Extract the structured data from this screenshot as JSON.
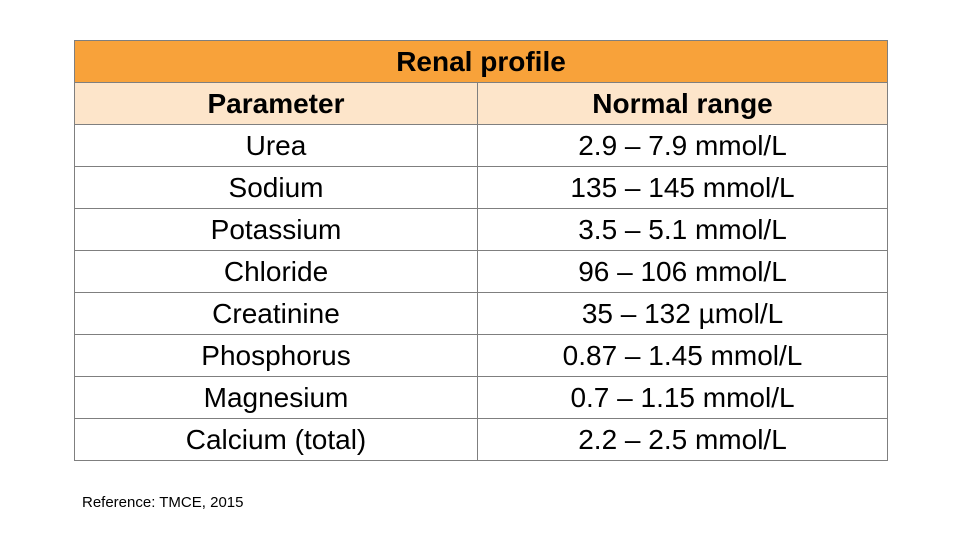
{
  "table": {
    "title": "Renal profile",
    "headers": [
      "Parameter",
      "Normal range"
    ],
    "rows": [
      {
        "parameter": "Urea",
        "range": "2.9 – 7.9 mmol/L"
      },
      {
        "parameter": "Sodium",
        "range": "135 – 145 mmol/L"
      },
      {
        "parameter": "Potassium",
        "range": "3.5 – 5.1 mmol/L"
      },
      {
        "parameter": "Chloride",
        "range": "96 – 106 mmol/L"
      },
      {
        "parameter": "Creatinine",
        "range": "35 – 132 µmol/L"
      },
      {
        "parameter": "Phosphorus",
        "range": "0.87 – 1.45 mmol/L"
      },
      {
        "parameter": "Magnesium",
        "range": "0.7 – 1.15 mmol/L"
      },
      {
        "parameter": "Calcium (total)",
        "range": "2.2 – 2.5 mmol/L"
      }
    ]
  },
  "reference": "Reference: TMCE, 2015",
  "colors": {
    "title_bg": "#f8a23a",
    "header_bg": "#fde5ca",
    "border": "#7f7f7f"
  }
}
